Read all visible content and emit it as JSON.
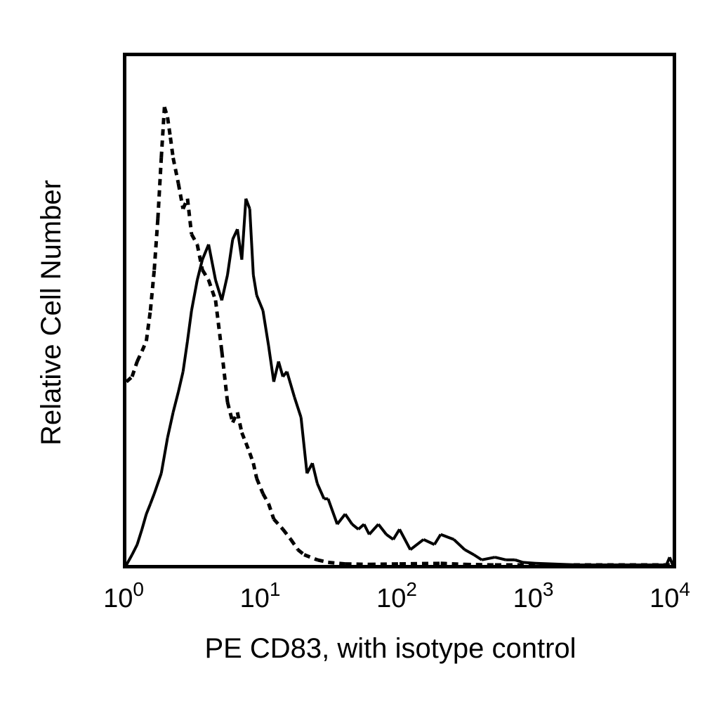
{
  "chart_data": {
    "type": "area",
    "title": "",
    "xlabel": "PE CD83, with isotype control",
    "ylabel": "Relative Cell Number",
    "x_scale": "log",
    "xlim": [
      1,
      10000
    ],
    "ylim": [
      0,
      100
    ],
    "x_ticks": [
      {
        "base": "10",
        "exp": "0",
        "value": 1
      },
      {
        "base": "10",
        "exp": "1",
        "value": 10
      },
      {
        "base": "10",
        "exp": "2",
        "value": 100
      },
      {
        "base": "10",
        "exp": "3",
        "value": 1000
      },
      {
        "base": "10",
        "exp": "4",
        "value": 10000
      }
    ],
    "grid": false,
    "legend": "none",
    "series": [
      {
        "style": "solid",
        "color": "#000000",
        "points": [
          [
            1.0,
            0
          ],
          [
            1.1,
            2
          ],
          [
            1.2,
            4
          ],
          [
            1.3,
            7
          ],
          [
            1.4,
            10
          ],
          [
            1.5,
            12
          ],
          [
            1.6,
            14
          ],
          [
            1.8,
            18
          ],
          [
            2.0,
            25
          ],
          [
            2.2,
            30
          ],
          [
            2.4,
            34
          ],
          [
            2.6,
            38
          ],
          [
            2.8,
            44
          ],
          [
            3.0,
            50
          ],
          [
            3.3,
            56
          ],
          [
            3.6,
            60
          ],
          [
            4.0,
            63
          ],
          [
            4.5,
            56
          ],
          [
            5.0,
            52
          ],
          [
            5.5,
            57
          ],
          [
            6.0,
            64
          ],
          [
            6.5,
            66
          ],
          [
            7.0,
            60
          ],
          [
            7.5,
            72
          ],
          [
            8.0,
            70
          ],
          [
            8.5,
            57
          ],
          [
            9.0,
            53
          ],
          [
            10,
            50
          ],
          [
            11,
            43
          ],
          [
            12,
            36
          ],
          [
            13,
            40
          ],
          [
            14,
            37
          ],
          [
            15,
            38
          ],
          [
            17,
            33
          ],
          [
            19,
            29
          ],
          [
            21,
            18
          ],
          [
            23,
            20
          ],
          [
            25,
            16
          ],
          [
            28,
            13
          ],
          [
            30,
            13
          ],
          [
            35,
            8
          ],
          [
            40,
            10
          ],
          [
            45,
            8
          ],
          [
            50,
            7
          ],
          [
            55,
            8
          ],
          [
            60,
            6
          ],
          [
            70,
            8
          ],
          [
            80,
            6
          ],
          [
            90,
            5
          ],
          [
            100,
            7
          ],
          [
            120,
            3
          ],
          [
            150,
            5
          ],
          [
            180,
            4
          ],
          [
            200,
            6
          ],
          [
            250,
            5
          ],
          [
            300,
            3
          ],
          [
            350,
            2
          ],
          [
            400,
            1
          ],
          [
            500,
            1.5
          ],
          [
            600,
            1
          ],
          [
            700,
            1
          ],
          [
            800,
            0.5
          ],
          [
            1000,
            0.3
          ],
          [
            2000,
            0
          ],
          [
            5000,
            0
          ],
          [
            9000,
            0
          ],
          [
            9500,
            1.5
          ],
          [
            10000,
            0
          ]
        ]
      },
      {
        "style": "dashed",
        "color": "#000000",
        "points": [
          [
            1.0,
            36
          ],
          [
            1.1,
            37
          ],
          [
            1.2,
            40
          ],
          [
            1.3,
            42
          ],
          [
            1.4,
            44
          ],
          [
            1.5,
            50
          ],
          [
            1.6,
            58
          ],
          [
            1.7,
            68
          ],
          [
            1.8,
            80
          ],
          [
            1.9,
            90
          ],
          [
            2.0,
            88
          ],
          [
            2.1,
            84
          ],
          [
            2.2,
            80
          ],
          [
            2.4,
            75
          ],
          [
            2.6,
            70
          ],
          [
            2.8,
            72
          ],
          [
            3.0,
            65
          ],
          [
            3.3,
            63
          ],
          [
            3.6,
            58
          ],
          [
            4.0,
            56
          ],
          [
            4.5,
            52
          ],
          [
            5.0,
            42
          ],
          [
            5.5,
            32
          ],
          [
            6.0,
            28
          ],
          [
            6.5,
            30
          ],
          [
            7.0,
            26
          ],
          [
            7.5,
            24
          ],
          [
            8.0,
            22
          ],
          [
            8.5,
            20
          ],
          [
            9.0,
            17
          ],
          [
            10,
            14
          ],
          [
            11,
            12
          ],
          [
            12,
            9
          ],
          [
            14,
            7
          ],
          [
            16,
            5
          ],
          [
            18,
            3
          ],
          [
            20,
            2
          ],
          [
            25,
            1
          ],
          [
            30,
            0.5
          ],
          [
            40,
            0.2
          ],
          [
            60,
            0.1
          ],
          [
            100,
            0.2
          ],
          [
            200,
            0.3
          ],
          [
            300,
            0.1
          ],
          [
            500,
            0
          ],
          [
            10000,
            0
          ]
        ]
      }
    ]
  }
}
